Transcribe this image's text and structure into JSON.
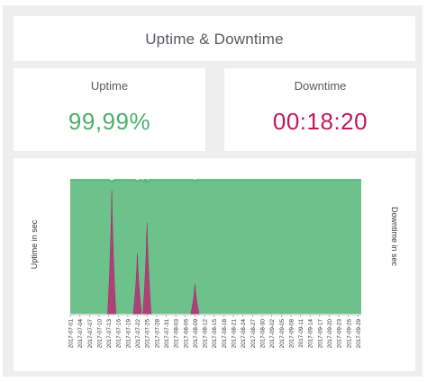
{
  "header": {
    "title": "Uptime & Downtime"
  },
  "kpis": {
    "uptime": {
      "label": "Uptime",
      "value": "99,99%",
      "color": "#4caf6e"
    },
    "downtime": {
      "label": "Downtime",
      "value": "00:18:20",
      "color": "#c2185b"
    }
  },
  "colors": {
    "uptime_fill": "#6cc28a",
    "uptime_line": "#4caf6e",
    "downtime_fill": "#b0407a"
  },
  "chart_data": {
    "type": "area",
    "ylabel_left": "Uptime in sec",
    "ylabel_right": "Downtime in sec",
    "xticks": [
      "2017-07-01",
      "2017-07-04",
      "2017-07-07",
      "2017-07-10",
      "2017-07-13",
      "2017-07-16",
      "2017-07-19",
      "2017-07-22",
      "2017-07-25",
      "2017-07-28",
      "2017-07-31",
      "2017-08-03",
      "2017-08-06",
      "2017-08-09",
      "2017-08-12",
      "2017-08-15",
      "2017-08-18",
      "2017-08-21",
      "2017-08-24",
      "2017-08-27",
      "2017-08-30",
      "2017-09-02",
      "2017-09-05",
      "2017-09-08",
      "2017-09-11",
      "2017-09-14",
      "2017-09-17",
      "2017-09-20",
      "2017-09-23",
      "2017-09-26",
      "2017-09-29"
    ],
    "series": [
      {
        "type": "area",
        "axis": "left",
        "x_range": [
          "2017-07-01",
          "2017-09-30"
        ],
        "values_description_note": ""
      },
      {
        "type": "spikes",
        "axis": "right",
        "spikes": [
          {
            "date": "2017-07-14",
            "value": 0.92
          },
          {
            "date": "2017-07-22",
            "value": 0.45
          },
          {
            "date": "2017-07-25",
            "value": 0.68
          },
          {
            "date": "2017-08-09",
            "value": 0.22
          }
        ]
      }
    ],
    "uptime_dips": [
      {
        "date": "2017-07-14",
        "value": 0.985
      },
      {
        "date": "2017-07-22",
        "value": 0.99
      },
      {
        "date": "2017-07-24",
        "value": 0.99
      },
      {
        "date": "2017-07-25",
        "value": 0.985
      },
      {
        "date": "2017-08-09",
        "value": 0.995
      }
    ]
  }
}
